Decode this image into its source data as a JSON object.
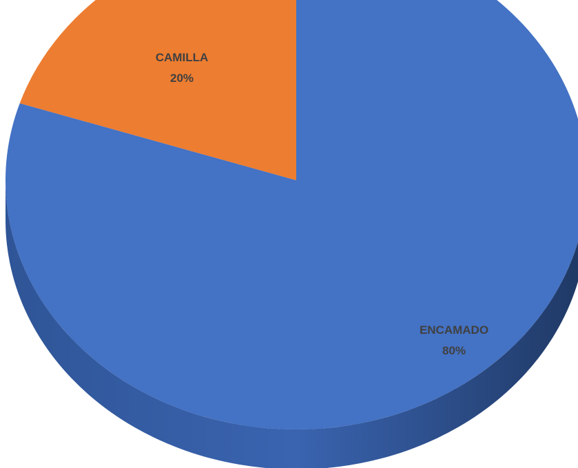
{
  "chart_data": {
    "type": "pie",
    "style": "3d",
    "title": "",
    "slices": [
      {
        "label": "CAMILLA",
        "value": 20,
        "percent_label": "20%",
        "color": "#ED7D31",
        "side_color": "#B45A17"
      },
      {
        "label": "ENCAMADO",
        "value": 80,
        "percent_label": "80%",
        "color": "#4472C4",
        "side_color": "#1F3864"
      }
    ]
  }
}
